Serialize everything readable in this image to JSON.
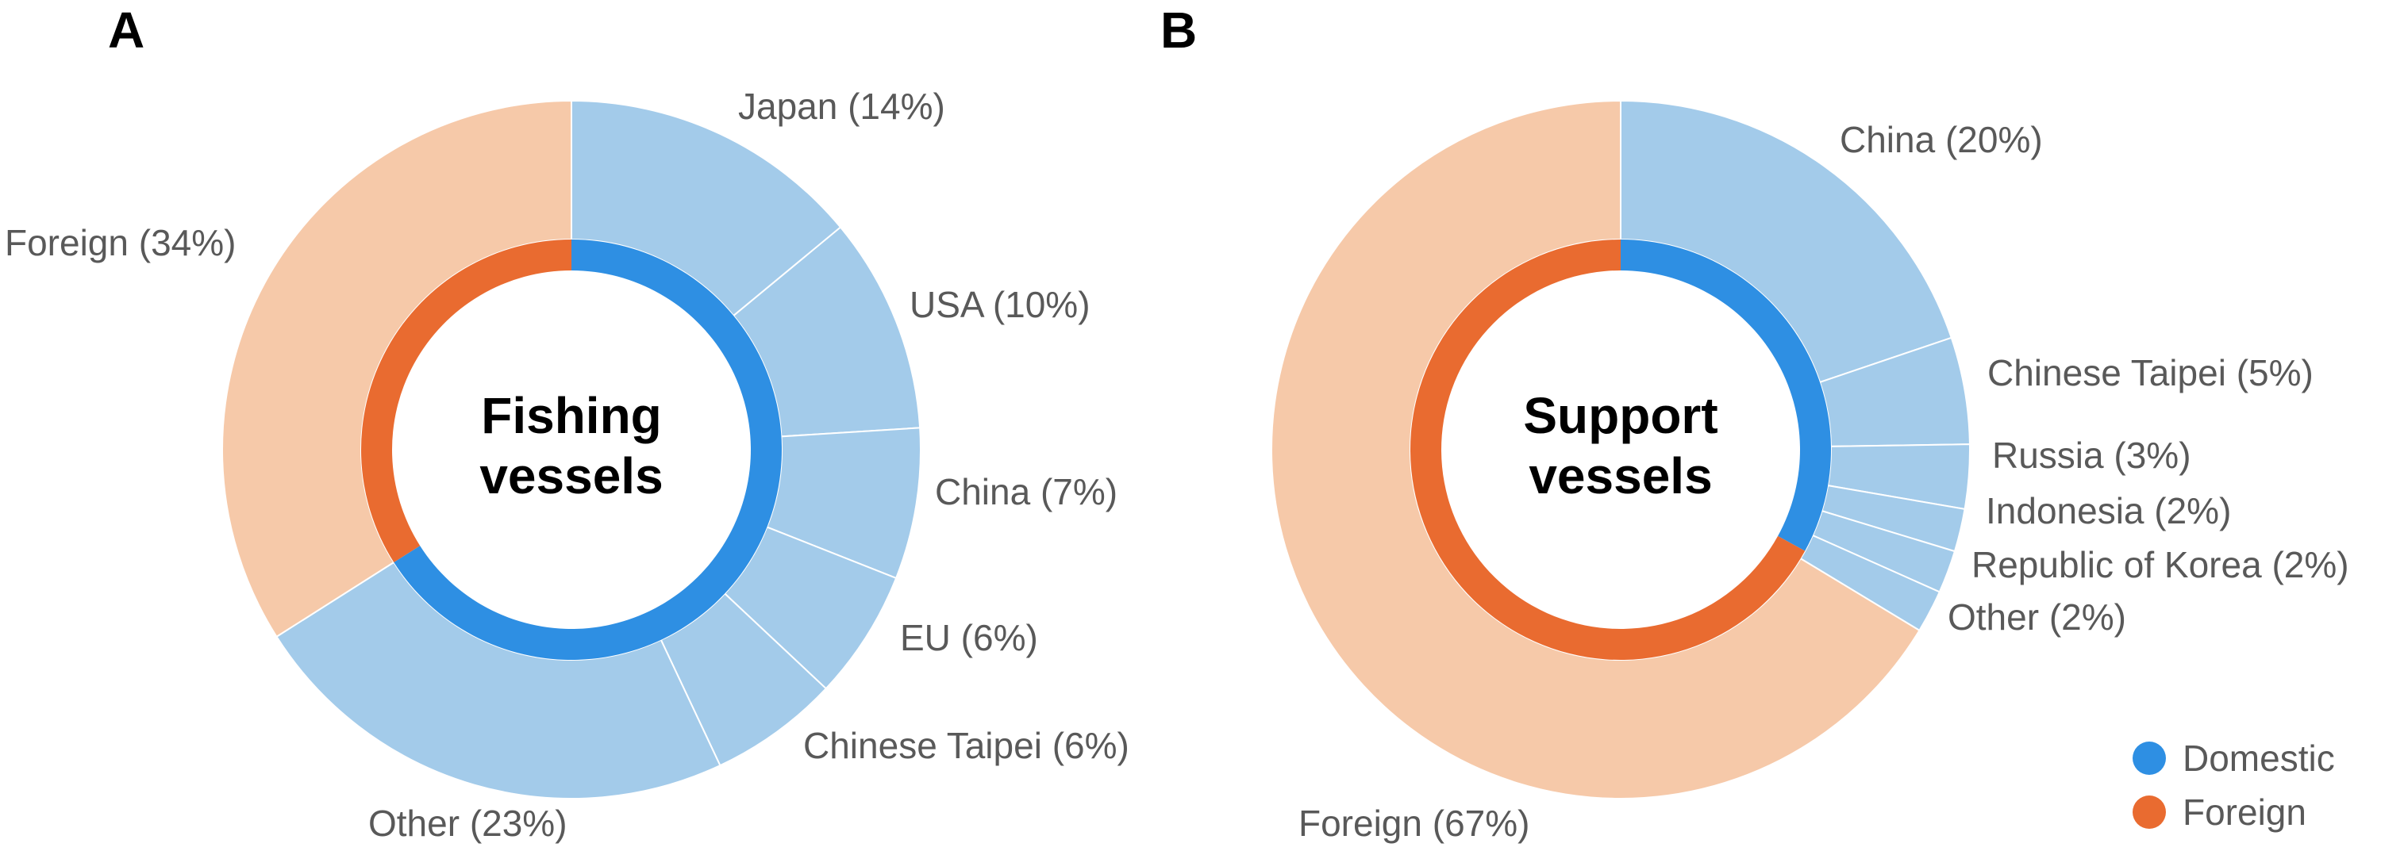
{
  "colors": {
    "domestic_inner": "#2e8fe3",
    "foreign_inner": "#e96b30",
    "domestic_outer": "#a3cbea",
    "foreign_outer": "#f6c9a9",
    "separator": "#ffffff"
  },
  "legend": {
    "position": "bottom-right",
    "items": [
      {
        "label": "Domestic",
        "color": "#2e8fe3"
      },
      {
        "label": "Foreign",
        "color": "#e96b30"
      }
    ]
  },
  "chart_data": [
    {
      "type": "pie",
      "panel": "A",
      "title": "",
      "center_label": [
        "Fishing",
        "vessels"
      ],
      "inner_ring": [
        {
          "group": "Domestic",
          "value": 66
        },
        {
          "group": "Foreign",
          "value": 34
        }
      ],
      "outer_ring": [
        {
          "group": "Domestic",
          "name": "Japan",
          "value": 14,
          "label": "Japan (14%)"
        },
        {
          "group": "Domestic",
          "name": "USA",
          "value": 10,
          "label": "USA (10%)"
        },
        {
          "group": "Domestic",
          "name": "China",
          "value": 7,
          "label": "China (7%)"
        },
        {
          "group": "Domestic",
          "name": "EU",
          "value": 6,
          "label": "EU (6%)"
        },
        {
          "group": "Domestic",
          "name": "Chinese Taipei",
          "value": 6,
          "label": "Chinese Taipei (6%)"
        },
        {
          "group": "Domestic",
          "name": "Other",
          "value": 23,
          "label": "Other (23%)"
        },
        {
          "group": "Foreign",
          "name": "Foreign",
          "value": 34,
          "label": "Foreign (34%)"
        }
      ]
    },
    {
      "type": "pie",
      "panel": "B",
      "title": "",
      "center_label": [
        "Support",
        "vessels"
      ],
      "inner_ring": [
        {
          "group": "Domestic",
          "value": 33
        },
        {
          "group": "Foreign",
          "value": 67
        }
      ],
      "outer_ring": [
        {
          "group": "Domestic",
          "name": "China",
          "value": 20,
          "label": "China (20%)"
        },
        {
          "group": "Domestic",
          "name": "Chinese Taipei",
          "value": 5,
          "label": "Chinese Taipei (5%)"
        },
        {
          "group": "Domestic",
          "name": "Russia",
          "value": 3,
          "label": "Russia (3%)"
        },
        {
          "group": "Domestic",
          "name": "Indonesia",
          "value": 2,
          "label": "Indonesia (2%)"
        },
        {
          "group": "Domestic",
          "name": "Republic of Korea",
          "value": 2,
          "label": "Republic of Korea (2%)"
        },
        {
          "group": "Domestic",
          "name": "Other",
          "value": 2,
          "label": "Other (2%)"
        },
        {
          "group": "Foreign",
          "name": "Foreign",
          "value": 67,
          "label": "Foreign (67%)"
        }
      ]
    }
  ]
}
